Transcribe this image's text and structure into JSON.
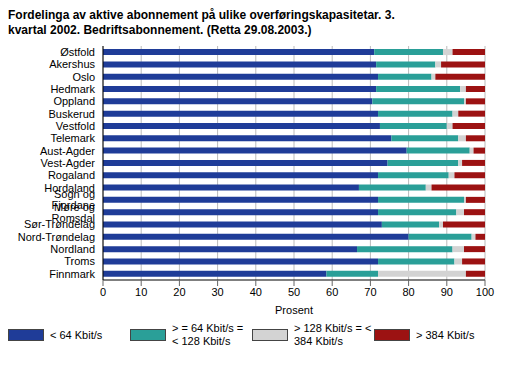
{
  "chart_data": {
    "type": "bar",
    "title": "Fordelinga av aktive abonnement på ulike overføringskapasitetar. 3. kvartal 2002. Bedriftsabonnement. (Retta 29.08.2003.)",
    "orientation": "horizontal",
    "stacked": true,
    "grid": true,
    "legend": "bottom",
    "x_label": "Prosent",
    "xlim": [
      0,
      100
    ],
    "xticks": [
      0,
      10,
      20,
      30,
      40,
      50,
      60,
      70,
      80,
      90,
      100
    ],
    "categories": [
      "Østfold",
      "Akershus",
      "Oslo",
      "Hedmark",
      "Oppland",
      "Buskerud",
      "Vestfold",
      "Telemark",
      "Aust-Agder",
      "Vest-Agder",
      "Rogaland",
      "Hordaland",
      "Sogn og Fjordane",
      "Møre og Romsdal",
      "Sør-Trøndelag",
      "Nord-Trøndelag",
      "Nordland",
      "Troms",
      "Finnmark"
    ],
    "series": [
      {
        "name": "< 64 Kbit/s",
        "color": "#1f3c98",
        "values": [
          71,
          71.5,
          72,
          71.5,
          70.5,
          72,
          72.5,
          75.5,
          79.5,
          74.5,
          72,
          67,
          72,
          72,
          73,
          80,
          66.5,
          72,
          58.5
        ]
      },
      {
        "name": "> = 64 Kbit/s = < 128 Kbit/s",
        "color": "#2a9f98",
        "values": [
          18,
          15.5,
          14,
          22,
          24,
          19.5,
          17.5,
          17.5,
          16.5,
          18.5,
          18.5,
          17.5,
          22.5,
          20.5,
          15,
          16.5,
          25,
          20,
          13.5
        ]
      },
      {
        "name": "> 128 Kbit/s = < 384 Kbit/s",
        "color": "#d3d3d3",
        "values": [
          2.5,
          1.5,
          1,
          1.5,
          0.5,
          1.5,
          1.5,
          2,
          1,
          1,
          1.5,
          1.5,
          0.5,
          2,
          1,
          1,
          3,
          2,
          23
        ]
      },
      {
        "name": "> 384 Kbit/s",
        "color": "#9c1212",
        "values": [
          8.5,
          11.5,
          13,
          5,
          5,
          7,
          8.5,
          5,
          3,
          6,
          8,
          14,
          5,
          5.5,
          11,
          2.5,
          5.5,
          6,
          5
        ]
      }
    ]
  }
}
